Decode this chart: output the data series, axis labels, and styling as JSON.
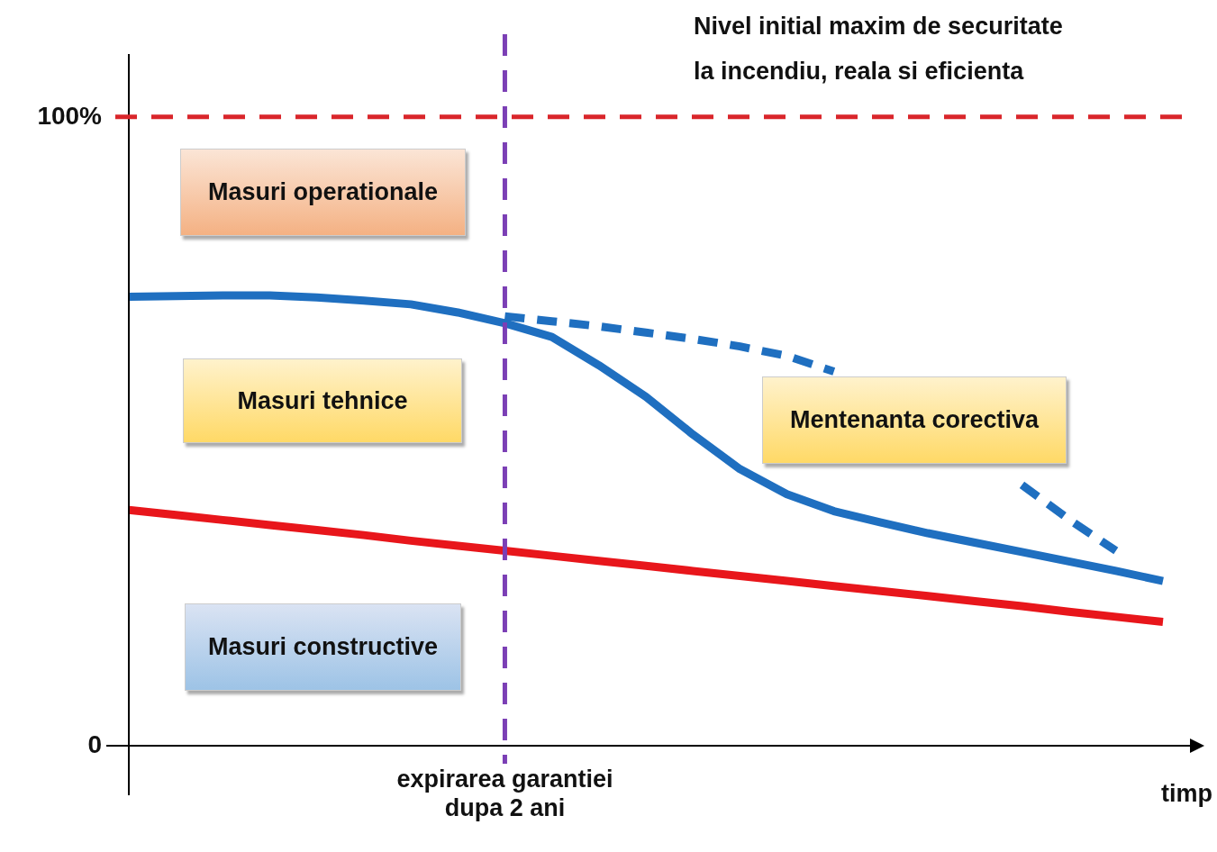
{
  "chart_data": {
    "type": "line",
    "xlabel": "timp",
    "categories": [
      null,
      null,
      null,
      null,
      null,
      null,
      null,
      null,
      "expirarea garantiei dupa 2 ani",
      null,
      null,
      null,
      null,
      null,
      null,
      null,
      null,
      null,
      null,
      null,
      null,
      null,
      null
    ],
    "ylim": [
      0,
      110
    ],
    "yticks": [
      {
        "value": 0,
        "label": "0"
      },
      {
        "value": 100,
        "label": "100%"
      }
    ],
    "grid": false,
    "legend": false,
    "marker": "none",
    "series": [
      {
        "color": "#1f6fc0",
        "line_style": "solid",
        "values": [
          71.4,
          71.5,
          71.6,
          71.6,
          71.3,
          70.8,
          70.2,
          68.9,
          67.2,
          65,
          60.5,
          55.5,
          49.5,
          44,
          40,
          37.3,
          35.5,
          33.8,
          32.3,
          30.8,
          29.3,
          27.8,
          26.2
        ]
      },
      {
        "color": "#1f6fc0",
        "line_style": "dashed",
        "values": [
          null,
          null,
          null,
          null,
          null,
          null,
          null,
          null,
          68.3,
          67.5,
          66.7,
          65.7,
          64.7,
          63.5,
          62,
          59.5,
          null,
          null,
          null,
          41.5,
          36,
          31,
          null
        ]
      },
      {
        "color": "#e8161b",
        "line_style": "solid",
        "values": [
          37.5,
          36.7,
          35.9,
          35.1,
          34.3,
          33.5,
          32.6,
          31.8,
          31,
          30.2,
          29.4,
          28.6,
          27.8,
          27,
          26.2,
          25.4,
          24.6,
          23.8,
          23,
          22.2,
          21.3,
          20.5,
          19.7
        ]
      }
    ],
    "ref_lines": [
      {
        "axis": "y",
        "value": 100,
        "label": "Nivel initial maxim de securitate la incendiu, reala si eficienta",
        "color": "#d9262b",
        "line_style": "dashed"
      },
      {
        "axis": "x",
        "value": "expirarea garantiei dupa 2 ani",
        "color": "#7b3fb5",
        "line_style": "dashed"
      }
    ],
    "annotations": [
      "Masuri operationale",
      "Masuri tehnice",
      "Masuri constructive",
      "Mentenanta corectiva"
    ]
  }
}
